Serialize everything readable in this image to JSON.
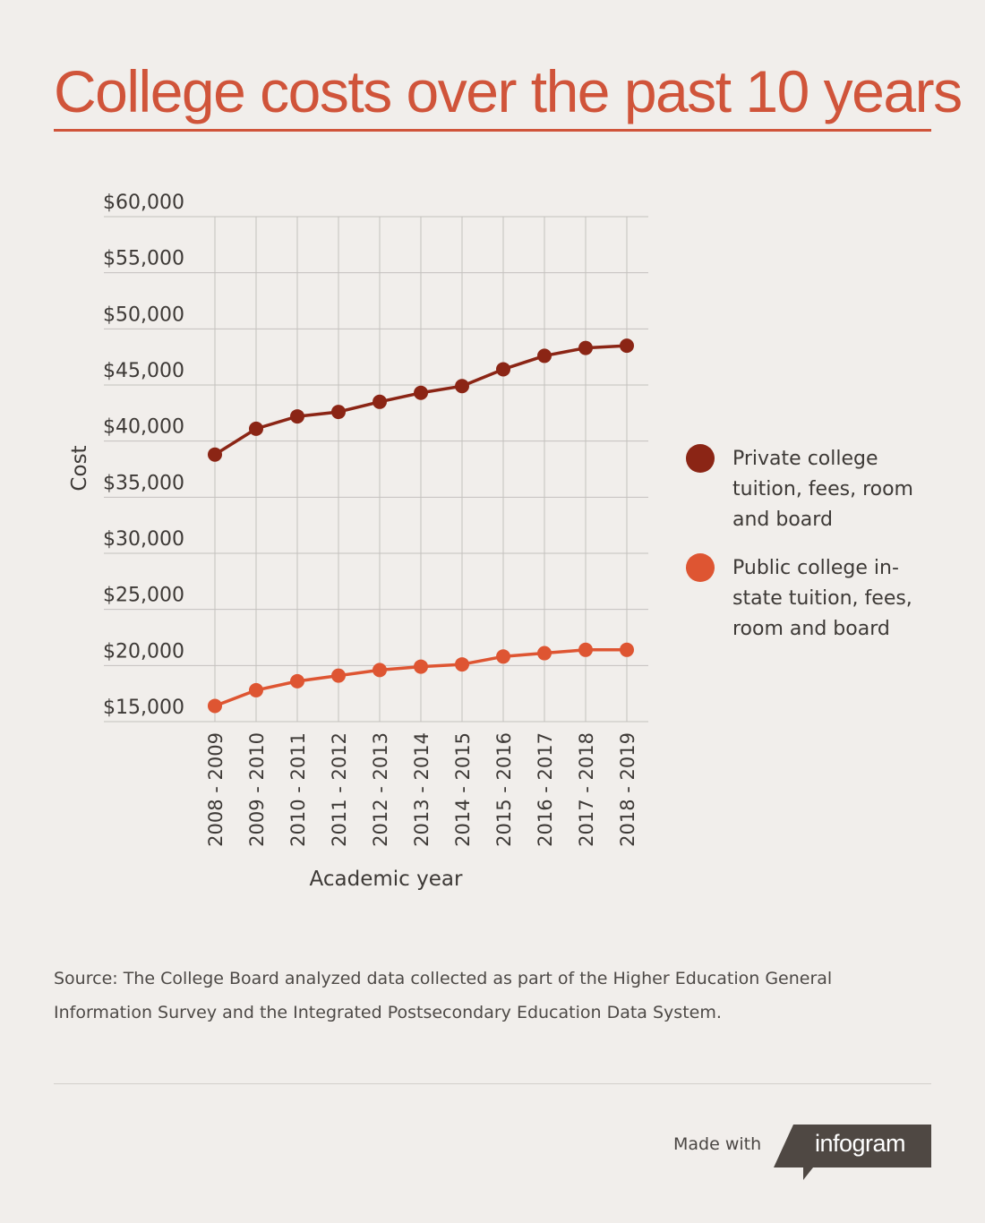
{
  "title": "College costs  over the past 10 years",
  "colors": {
    "accent": "#d0543a",
    "private_series": "#8b2515",
    "public_series": "#de5532",
    "grid": "#c4c1be",
    "badge": "#4f4843"
  },
  "chart_data": {
    "type": "line",
    "title": "College costs  over the past 10 years",
    "xlabel": "Academic year",
    "ylabel": "Cost",
    "ylim": [
      15000,
      60000
    ],
    "grid": true,
    "legend_position": "right",
    "y_ticks": [
      60000,
      55000,
      50000,
      45000,
      40000,
      35000,
      30000,
      25000,
      20000,
      15000
    ],
    "y_tick_labels": [
      "$60,000",
      "$55,000",
      "$50,000",
      "$45,000",
      "$40,000",
      "$35,000",
      "$30,000",
      "$25,000",
      "$20,000",
      "$15,000"
    ],
    "categories": [
      "2008 - 2009",
      "2009 - 2010",
      "2010 - 2011",
      "2011 - 2012",
      "2012 - 2013",
      "2013 - 2014",
      "2014 - 2015",
      "2015 - 2016",
      "2016 - 2017",
      "2017 - 2018",
      "2018 - 2019"
    ],
    "series": [
      {
        "name": "Private college tuition, fees, room and board",
        "color": "#8b2515",
        "values": [
          38800,
          41100,
          42200,
          42600,
          43500,
          44300,
          44900,
          46400,
          47600,
          48300,
          48500
        ]
      },
      {
        "name": "Public college in-state tuition, fees, room and board",
        "color": "#de5532",
        "values": [
          16400,
          17800,
          18600,
          19100,
          19600,
          19900,
          20100,
          20800,
          21100,
          21400,
          21400
        ]
      }
    ]
  },
  "legend": [
    {
      "label": "Private college tuition, fees, room and board",
      "color": "#8b2515"
    },
    {
      "label": "Public college in-state tuition, fees, room and board",
      "color": "#de5532"
    }
  ],
  "source": "Source: The College Board analyzed data collected as part of the Higher Education General Information Survey and the Integrated Postsecondary Education Data System.",
  "footer": {
    "made_with": "Made with",
    "brand": "infogram"
  }
}
